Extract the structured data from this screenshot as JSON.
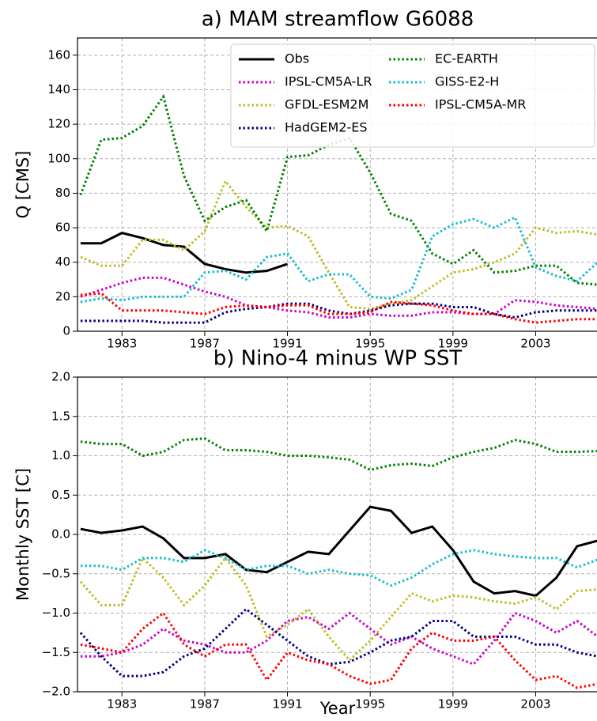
{
  "chart_data": [
    {
      "type": "line",
      "title": "a) MAM streamflow G6088",
      "ylabel": "Q [CMS]",
      "x": [
        1981,
        1982,
        1983,
        1984,
        1985,
        1986,
        1987,
        1988,
        1989,
        1990,
        1991,
        1992,
        1993,
        1994,
        1995,
        1996,
        1997,
        1998,
        1999,
        2000,
        2001,
        2002,
        2003,
        2004,
        2005,
        2006
      ],
      "xlim": [
        1980.85,
        2006
      ],
      "xticks": [
        1983,
        1987,
        1991,
        1995,
        1999,
        2003
      ],
      "ylim": [
        0,
        170
      ],
      "yticks": [
        0,
        20,
        40,
        60,
        80,
        100,
        120,
        140,
        160
      ],
      "grid": true,
      "legend": "upper right",
      "legend_columns": 2,
      "series": [
        {
          "name": "Obs",
          "color": "#000000",
          "style": "solid",
          "values": [
            51,
            51,
            57,
            54,
            50,
            49,
            39,
            36,
            34,
            35,
            39,
            null,
            null,
            null,
            null,
            null,
            null,
            null,
            null,
            null,
            null,
            null,
            null,
            null,
            null,
            null
          ]
        },
        {
          "name": "IPSL-CM5A-LR",
          "color": "#cc00cc",
          "style": "dotted",
          "values": [
            20,
            24,
            28,
            31,
            31,
            27,
            23,
            20,
            15,
            14,
            12,
            11,
            8,
            8,
            10,
            9,
            9,
            11,
            11,
            10,
            10,
            18,
            17,
            15,
            14,
            13
          ]
        },
        {
          "name": "GFDL-ESM2M",
          "color": "#bcbd22",
          "style": "dotted",
          "values": [
            43,
            38,
            38,
            53,
            53,
            47,
            58,
            87,
            72,
            60,
            61,
            55,
            34,
            14,
            13,
            16,
            18,
            26,
            34,
            36,
            40,
            45,
            60,
            57,
            58,
            56
          ]
        },
        {
          "name": "HadGEM2-ES",
          "color": "#000080",
          "style": "dotted",
          "values": [
            6,
            6,
            6,
            6,
            5,
            5,
            5,
            11,
            13,
            14,
            16,
            16,
            12,
            10,
            12,
            15,
            16,
            16,
            14,
            14,
            10,
            8,
            11,
            12,
            12,
            12
          ]
        },
        {
          "name": "EC-EARTH",
          "color": "#008000",
          "style": "dotted",
          "values": [
            79,
            111,
            112,
            119,
            136,
            90,
            64,
            72,
            76,
            58,
            101,
            102,
            108,
            112,
            92,
            68,
            64,
            45,
            39,
            47,
            34,
            35,
            38,
            38,
            28,
            27
          ]
        },
        {
          "name": "GISS-E2-H",
          "color": "#17becf",
          "style": "dotted",
          "values": [
            17,
            19,
            18,
            20,
            20,
            20,
            34,
            35,
            30,
            43,
            45,
            29,
            33,
            33,
            20,
            19,
            24,
            55,
            62,
            65,
            60,
            66,
            37,
            32,
            29,
            40
          ]
        },
        {
          "name": "IPSL-CM5A-MR",
          "color": "#ff0000",
          "style": "dotted",
          "values": [
            21,
            22,
            12,
            12,
            12,
            11,
            10,
            14,
            15,
            14,
            15,
            15,
            10,
            10,
            11,
            17,
            16,
            15,
            12,
            10,
            10,
            7,
            5,
            6,
            7,
            7
          ]
        }
      ]
    },
    {
      "type": "line",
      "title": "b) Nino-4 minus WP SST",
      "ylabel": "Monthly SST [C]",
      "xlabel": "Year",
      "x": [
        1981,
        1982,
        1983,
        1984,
        1985,
        1986,
        1987,
        1988,
        1989,
        1990,
        1991,
        1992,
        1993,
        1994,
        1995,
        1996,
        1997,
        1998,
        1999,
        2000,
        2001,
        2002,
        2003,
        2004,
        2005,
        2006
      ],
      "xlim": [
        1980.85,
        2006
      ],
      "xticks": [
        1983,
        1987,
        1991,
        1995,
        1999,
        2003
      ],
      "ylim": [
        -2,
        2
      ],
      "yticks": [
        {
          "value": -2,
          "label": "−2.0"
        },
        {
          "value": -1.5,
          "label": "−1.5"
        },
        {
          "value": -1,
          "label": "−1.0"
        },
        {
          "value": -0.5,
          "label": "−0.5"
        },
        {
          "value": 0,
          "label": "0.0"
        },
        0.5,
        {
          "value": 1,
          "label": "1.0"
        },
        1.5,
        {
          "value": 2,
          "label": "2.0"
        }
      ],
      "grid": true,
      "series": [
        {
          "name": "Obs",
          "color": "#000000",
          "style": "solid",
          "values": [
            0.07,
            0.02,
            0.05,
            0.1,
            -0.05,
            -0.3,
            -0.3,
            -0.25,
            -0.45,
            -0.48,
            -0.35,
            -0.22,
            -0.25,
            0.05,
            0.35,
            0.3,
            0.02,
            0.1,
            -0.2,
            -0.6,
            -0.75,
            -0.72,
            -0.78,
            -0.55,
            -0.15,
            -0.08
          ]
        },
        {
          "name": "IPSL-CM5A-LR",
          "color": "#cc00cc",
          "style": "dotted",
          "values": [
            -1.55,
            -1.55,
            -1.5,
            -1.4,
            -1.2,
            -1.35,
            -1.4,
            -1.5,
            -1.5,
            -1.35,
            -1.1,
            -1.05,
            -1.2,
            -1.0,
            -1.2,
            -1.4,
            -1.3,
            -1.45,
            -1.55,
            -1.65,
            -1.35,
            -1.0,
            -1.1,
            -1.25,
            -1.1,
            -1.3
          ]
        },
        {
          "name": "GFDL-ESM2M",
          "color": "#bcbd22",
          "style": "dotted",
          "values": [
            -0.6,
            -0.9,
            -0.9,
            -0.3,
            -0.55,
            -0.9,
            -0.65,
            -0.3,
            -0.65,
            -1.3,
            -1.15,
            -0.95,
            -1.3,
            -1.6,
            -1.35,
            -1.05,
            -0.75,
            -0.85,
            -0.78,
            -0.8,
            -0.85,
            -0.88,
            -0.8,
            -0.95,
            -0.72,
            -0.7
          ]
        },
        {
          "name": "HadGEM2-ES",
          "color": "#000080",
          "style": "dotted",
          "values": [
            -1.25,
            -1.55,
            -1.8,
            -1.8,
            -1.75,
            -1.55,
            -1.45,
            -1.2,
            -0.95,
            -1.15,
            -1.35,
            -1.55,
            -1.65,
            -1.62,
            -1.5,
            -1.35,
            -1.3,
            -1.1,
            -1.1,
            -1.3,
            -1.3,
            -1.3,
            -1.4,
            -1.4,
            -1.5,
            -1.55
          ]
        },
        {
          "name": "EC-EARTH",
          "color": "#008000",
          "style": "dotted",
          "values": [
            1.18,
            1.15,
            1.15,
            1.0,
            1.05,
            1.2,
            1.22,
            1.07,
            1.07,
            1.05,
            1.0,
            1.0,
            0.98,
            0.95,
            0.82,
            0.88,
            0.9,
            0.87,
            0.98,
            1.05,
            1.1,
            1.2,
            1.15,
            1.05,
            1.05,
            1.06
          ]
        },
        {
          "name": "GISS-E2-H",
          "color": "#17becf",
          "style": "dotted",
          "values": [
            -0.4,
            -0.4,
            -0.45,
            -0.3,
            -0.3,
            -0.35,
            -0.2,
            -0.3,
            -0.45,
            -0.4,
            -0.4,
            -0.5,
            -0.45,
            -0.5,
            -0.52,
            -0.65,
            -0.55,
            -0.38,
            -0.25,
            -0.2,
            -0.25,
            -0.28,
            -0.3,
            -0.3,
            -0.42,
            -0.32
          ]
        },
        {
          "name": "IPSL-CM5A-MR",
          "color": "#ff0000",
          "style": "dotted",
          "values": [
            -1.4,
            -1.45,
            -1.5,
            -1.2,
            -1.0,
            -1.4,
            -1.55,
            -1.4,
            -1.4,
            -1.85,
            -1.5,
            -1.6,
            -1.65,
            -1.8,
            -1.9,
            -1.85,
            -1.45,
            -1.25,
            -1.35,
            -1.35,
            -1.3,
            -1.6,
            -1.85,
            -1.8,
            -1.95,
            -1.9
          ]
        }
      ]
    }
  ]
}
